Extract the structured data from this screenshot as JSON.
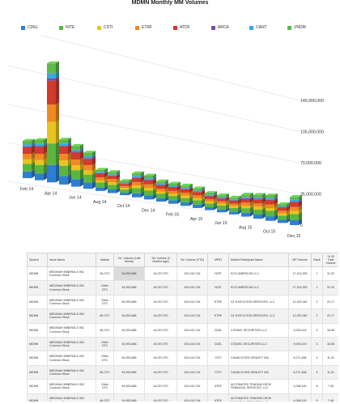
{
  "title": "MDMN Monthly MM Volumes",
  "colors": {
    "CDEL": "#2f7fd0",
    "NITE": "#5bb640",
    "CSTI": "#e8c41e",
    "ETRF": "#ef8a23",
    "ATDF": "#d23a2c",
    "ARCA": "#7b4bb0",
    "CANT": "#3aa8d8",
    "VNDM": "#5fb94a"
  },
  "chart_data": {
    "type": "bar",
    "stacked": true,
    "title": "MDMN Monthly MM Volumes",
    "categories": [
      "Feb 14",
      "Mar 14",
      "Apr 14",
      "May 14",
      "Jun 14",
      "Jul 14",
      "Aug 14",
      "Sep 14",
      "Oct 14",
      "Nov 14",
      "Dec 14",
      "Jan 15",
      "Feb 15",
      "Mar 15",
      "Apr 15",
      "May 15",
      "Jun 15",
      "Jul 15",
      "Aug 15",
      "Sep 15",
      "Oct 15",
      "Nov 15",
      "Dec 15"
    ],
    "tick_labels": [
      "Feb 14",
      "Apr 14",
      "Jun 14",
      "Aug 14",
      "Oct 14",
      "Dec 14",
      "Feb 15",
      "Apr 15",
      "Jun 15",
      "Aug 15",
      "Oct 15",
      "Dec 15"
    ],
    "yticks": [
      "0",
      "35,000,000",
      "70,000,000",
      "105,000,000",
      "140,000,000"
    ],
    "ylim": [
      0,
      140000000
    ],
    "legend": [
      "CDEL",
      "NITE",
      "CSTI",
      "ETRF",
      "ATDF",
      "ARCA",
      "CANT",
      "VNDM"
    ],
    "legend_position": "top",
    "series": [
      {
        "name": "CDEL",
        "values": [
          6000000,
          6000000,
          16000000,
          8000000,
          7000000,
          6000000,
          3500000,
          3500000,
          2500000,
          4000000,
          4000000,
          3500000,
          3500000,
          3500000,
          3500000,
          3000000,
          3000000,
          3000000,
          4000000,
          4500000,
          5000000,
          3500000,
          5500000
        ]
      },
      {
        "name": "NITE",
        "values": [
          7000000,
          8000000,
          20000000,
          9500000,
          8500000,
          7500000,
          4500000,
          4500000,
          3000000,
          5000000,
          5000000,
          4500000,
          4500000,
          4500000,
          4500000,
          4000000,
          4000000,
          4000000,
          5000000,
          5500000,
          6000000,
          4500000,
          7000000
        ]
      },
      {
        "name": "CSTI",
        "values": [
          4000000,
          4500000,
          20000000,
          5000000,
          4500000,
          4000000,
          2000000,
          2500000,
          1500000,
          2500000,
          2500000,
          2000000,
          2000000,
          2500000,
          2000000,
          2000000,
          2000000,
          2000000,
          2500000,
          3000000,
          3000000,
          2500000,
          3500000
        ]
      },
      {
        "name": "ETRF",
        "values": [
          5000000,
          5500000,
          16000000,
          6000000,
          5500000,
          5000000,
          3000000,
          3000000,
          2000000,
          3500000,
          3500000,
          3000000,
          3000000,
          3000000,
          3000000,
          2500000,
          2500000,
          2500000,
          3500000,
          3500000,
          4000000,
          3000000,
          4500000
        ]
      },
      {
        "name": "ATDF",
        "values": [
          6000000,
          6500000,
          22000000,
          7000000,
          6500000,
          6000000,
          3500000,
          3000000,
          2000000,
          4000000,
          4000000,
          3500000,
          3500000,
          3500000,
          3500000,
          3000000,
          3000000,
          3000000,
          4000000,
          4500000,
          4500000,
          3500000,
          5000000
        ]
      },
      {
        "name": "ARCA",
        "values": [
          800000,
          800000,
          2000000,
          800000,
          800000,
          700000,
          500000,
          500000,
          400000,
          600000,
          600000,
          500000,
          500000,
          500000,
          500000,
          500000,
          500000,
          500000,
          600000,
          600000,
          700000,
          500000,
          800000
        ]
      },
      {
        "name": "CANT",
        "values": [
          2000000,
          2000000,
          5000000,
          2000000,
          2000000,
          2000000,
          1200000,
          1200000,
          900000,
          1500000,
          1500000,
          1200000,
          1200000,
          1200000,
          1200000,
          1000000,
          1000000,
          1000000,
          1500000,
          1600000,
          1800000,
          1200000,
          2000000
        ]
      },
      {
        "name": "VNDM",
        "values": [
          3000000,
          3500000,
          9000000,
          3500000,
          3500000,
          3000000,
          2000000,
          2000000,
          1500000,
          2500000,
          2500000,
          2000000,
          2000000,
          2000000,
          2000000,
          1800000,
          1800000,
          1800000,
          2500000,
          2600000,
          2800000,
          2000000,
          3200000
        ]
      }
    ]
  },
  "table": {
    "headers": [
      "Symbol",
      "Issue Name",
      "Market",
      "Tot. Volume (Last Month)",
      "Tot. Volume (2 Months Ago)",
      "Tot. Volume (YTD)",
      "MPID",
      "Market Participant Name",
      "MP Volume",
      "Rank",
      "% Of Total Volume"
    ],
    "rows": [
      [
        "MDMN",
        "MEDINAH MINERALS INC Common Stock",
        "All OTC",
        "54,953,868",
        "44,037,970",
        "420,415,744",
        "NITE",
        "KCG AMERICAS LLC",
        "17,214,253",
        "1",
        "31.32"
      ],
      [
        "MDMN",
        "MEDINAH MINERALS INC Common Stock",
        "Other OTC",
        "54,953,868",
        "44,037,970",
        "420,415,744",
        "NITE",
        "KCG AMERICAS LLC",
        "17,214,253",
        "1",
        "31.32"
      ],
      [
        "MDMN",
        "MEDINAH MINERALS INC Common Stock",
        "Other OTC",
        "54,953,868",
        "44,037,970",
        "420,415,744",
        "ETRF",
        "G1 EXECUTION SERVICES, LLC",
        "12,182,062",
        "2",
        "22.17"
      ],
      [
        "MDMN",
        "MEDINAH MINERALS INC Common Stock",
        "All OTC",
        "54,953,868",
        "44,037,970",
        "420,415,744",
        "ETRF",
        "G1 EXECUTION SERVICES, LLC",
        "12,182,062",
        "2",
        "22.17"
      ],
      [
        "MDMN",
        "MEDINAH MINERALS INC Common Stock",
        "All OTC",
        "54,953,868",
        "44,037,970",
        "420,415,744",
        "CDEL",
        "CITADEL SECURITIES LLC",
        "9,935,419",
        "3",
        "18.08"
      ],
      [
        "MDMN",
        "MEDINAH MINERALS INC Common Stock",
        "Other OTC",
        "54,953,868",
        "44,037,970",
        "420,415,744",
        "CDEL",
        "CITADEL SECURITIES LLC",
        "9,935,419",
        "3",
        "18.08"
      ],
      [
        "MDMN",
        "MEDINAH MINERALS INC Common Stock",
        "Other OTC",
        "54,953,868",
        "44,037,970",
        "420,415,744",
        "CSTI",
        "CANACCORD GENUITY INC.",
        "6,271,468",
        "4",
        "11.41"
      ],
      [
        "MDMN",
        "MEDINAH MINERALS INC Common Stock",
        "All OTC",
        "54,953,868",
        "44,037,970",
        "420,415,744",
        "CSTI",
        "CANACCORD GENUITY INC.",
        "6,271,468",
        "4",
        "11.41"
      ],
      [
        "MDMN",
        "MEDINAH MINERALS INC Common Stock",
        "Other OTC",
        "54,953,868",
        "44,037,970",
        "420,415,744",
        "ATDF",
        "AUTOMATED TRADING DESK FINANCIAL SERVICES, LLC",
        "4,098,100",
        "5",
        "7.46"
      ],
      [
        "MDMN",
        "MEDINAH MINERALS INC Common Stock",
        "All OTC",
        "54,953,868",
        "44,037,970",
        "420,415,744",
        "ATDF",
        "AUTOMATED TRADING DESK FINANCIAL SERVICES, LLC",
        "4,098,100",
        "5",
        "7.46"
      ]
    ]
  }
}
